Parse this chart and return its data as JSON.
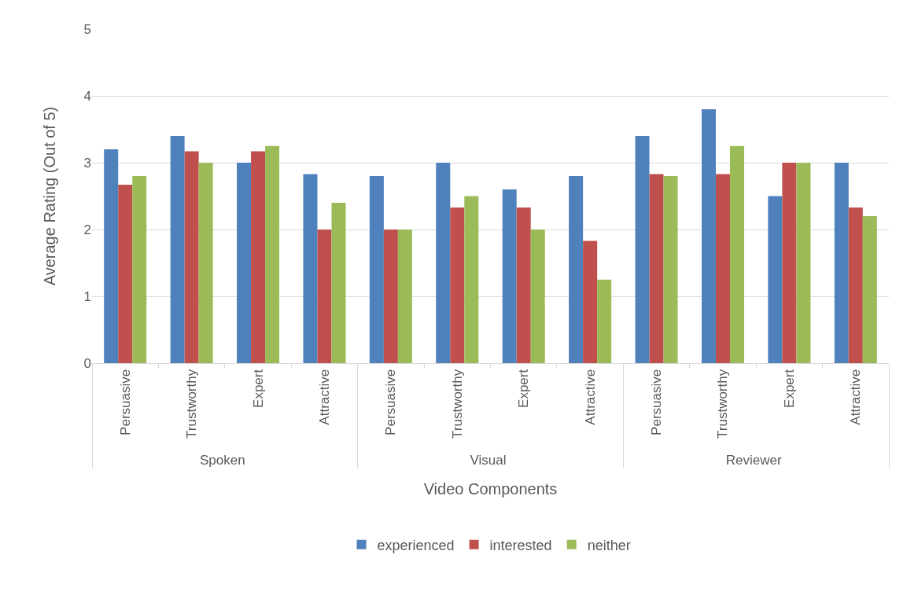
{
  "chart_data": {
    "type": "bar",
    "xlabel": "Video Components",
    "ylabel": "Average Rating (Out of 5)",
    "categories": [
      "Persuasive",
      "Trustworthy",
      "Expert",
      "Attractive",
      "Persuasive",
      "Trustworthy",
      "Expert",
      "Attractive",
      "Persuasive",
      "Trustworthy",
      "Expert",
      "Attractive"
    ],
    "annotations": [
      "Spoken",
      "Visual",
      "Reviewer"
    ],
    "series": [
      {
        "name": "experienced",
        "color": "#4f81bd",
        "values": [
          3.2,
          3.4,
          3.0,
          2.83,
          2.8,
          3.0,
          2.6,
          2.8,
          3.4,
          3.8,
          2.5,
          3.0
        ]
      },
      {
        "name": "interested",
        "color": "#c0504d",
        "values": [
          2.67,
          3.17,
          3.17,
          2.0,
          2.0,
          2.33,
          2.33,
          1.83,
          2.83,
          2.83,
          3.0,
          2.33
        ]
      },
      {
        "name": "neither",
        "color": "#9bbb59",
        "values": [
          2.8,
          3.0,
          3.25,
          2.4,
          2.0,
          2.5,
          2.0,
          1.25,
          2.8,
          3.25,
          3.0,
          2.2
        ]
      }
    ],
    "ylim": [
      0,
      5
    ],
    "yticks": [
      0,
      1,
      2,
      3,
      4,
      5
    ],
    "grid": "y",
    "legend": "bottom"
  }
}
